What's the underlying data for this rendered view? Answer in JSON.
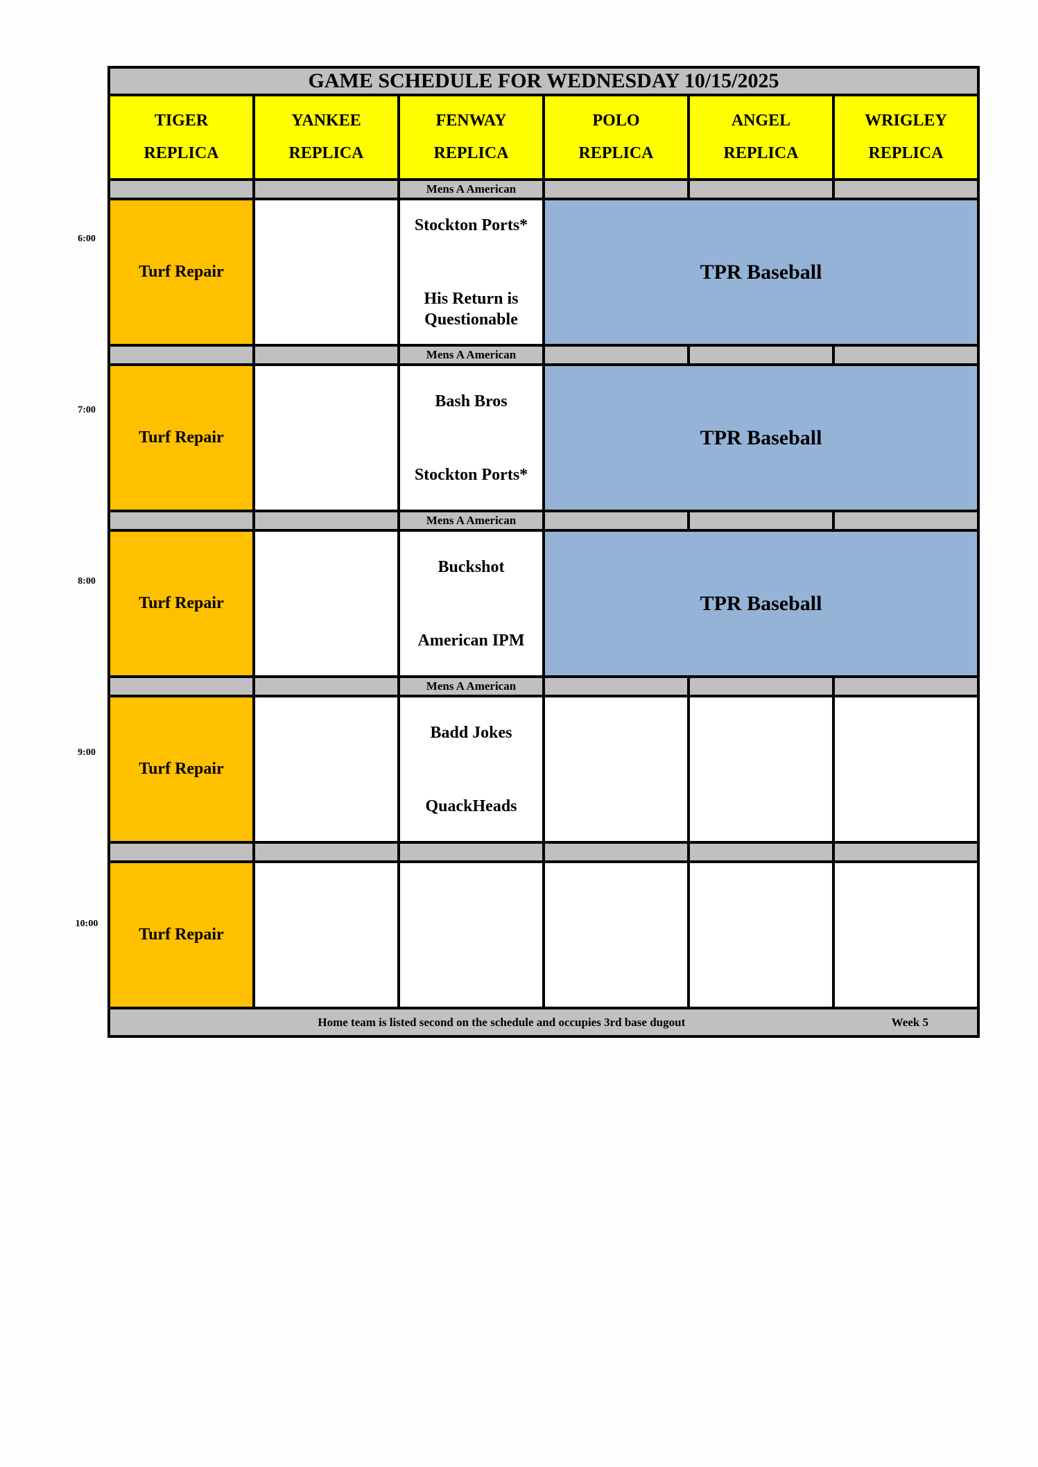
{
  "title": "GAME SCHEDULE FOR WEDNESDAY 10/15/2025",
  "fields": [
    {
      "line1": "TIGER",
      "line2": "REPLICA"
    },
    {
      "line1": "YANKEE",
      "line2": "REPLICA"
    },
    {
      "line1": "FENWAY",
      "line2": "REPLICA"
    },
    {
      "line1": "POLO",
      "line2": "REPLICA"
    },
    {
      "line1": "ANGEL",
      "line2": "REPLICA"
    },
    {
      "line1": "WRIGLEY",
      "line2": "REPLICA"
    }
  ],
  "colors": {
    "header": "#ffff00",
    "turf_repair": "#ffc000",
    "tpr": "#95b3d7",
    "divider": "#c0c0c0"
  },
  "slots": [
    {
      "time": "6:00",
      "turf": "Turf Repair",
      "division": "Mens A American",
      "away": "Stockton Ports*",
      "home": "His Return is Questionable",
      "tpr": "TPR Baseball"
    },
    {
      "time": "7:00",
      "turf": "Turf Repair",
      "division": "Mens A American",
      "away": "Bash Bros",
      "home": "Stockton Ports*",
      "tpr": "TPR Baseball"
    },
    {
      "time": "8:00",
      "turf": "Turf Repair",
      "division": "Mens A American",
      "away": "Buckshot",
      "home": "American IPM",
      "tpr": "TPR Baseball"
    },
    {
      "time": "9:00",
      "turf": "Turf Repair",
      "division": "Mens A American",
      "away": "Badd Jokes",
      "home": "QuackHeads"
    },
    {
      "time": "10:00",
      "turf": "Turf Repair"
    }
  ],
  "footer": {
    "note": "Home team is listed second on the schedule and occupies 3rd base dugout",
    "week": "Week 5"
  }
}
